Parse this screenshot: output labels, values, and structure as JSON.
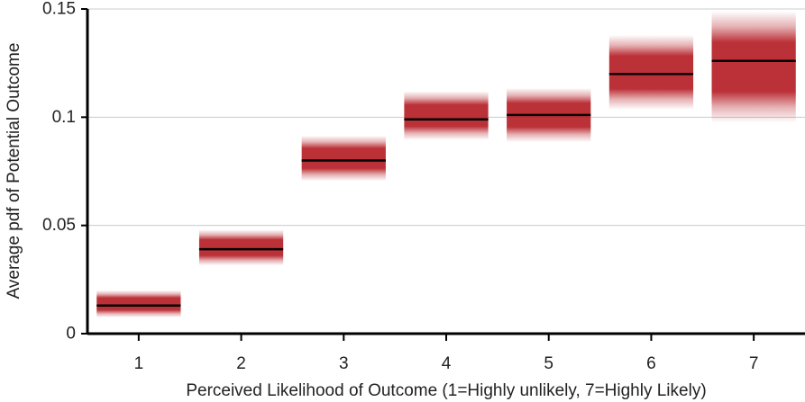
{
  "chart_data": {
    "type": "bar",
    "xlabel": "Perceived Likelihood of Outcome (1=Highly unlikely, 7=Highly Likely)",
    "ylabel": "Average pdf of Potential Outcome",
    "categories": [
      "1",
      "2",
      "3",
      "4",
      "5",
      "6",
      "7"
    ],
    "xlim": [
      0.5,
      7.5
    ],
    "ylim": [
      0,
      0.15
    ],
    "yticks": [
      0,
      0.05,
      0.1,
      0.15
    ],
    "ytick_labels": [
      "0",
      "0.05",
      "0.1",
      "0.15"
    ],
    "grid": "horizontal",
    "mean": [
      0.013,
      0.039,
      0.08,
      0.099,
      0.101,
      0.12,
      0.126
    ],
    "ci_low": [
      0.0075,
      0.0315,
      0.0705,
      0.0895,
      0.0885,
      0.1035,
      0.0975
    ],
    "ci_high": [
      0.02,
      0.048,
      0.0915,
      0.112,
      0.1135,
      0.138,
      0.149
    ],
    "band_color": "#b51f26",
    "mean_line_color": "#000000"
  }
}
